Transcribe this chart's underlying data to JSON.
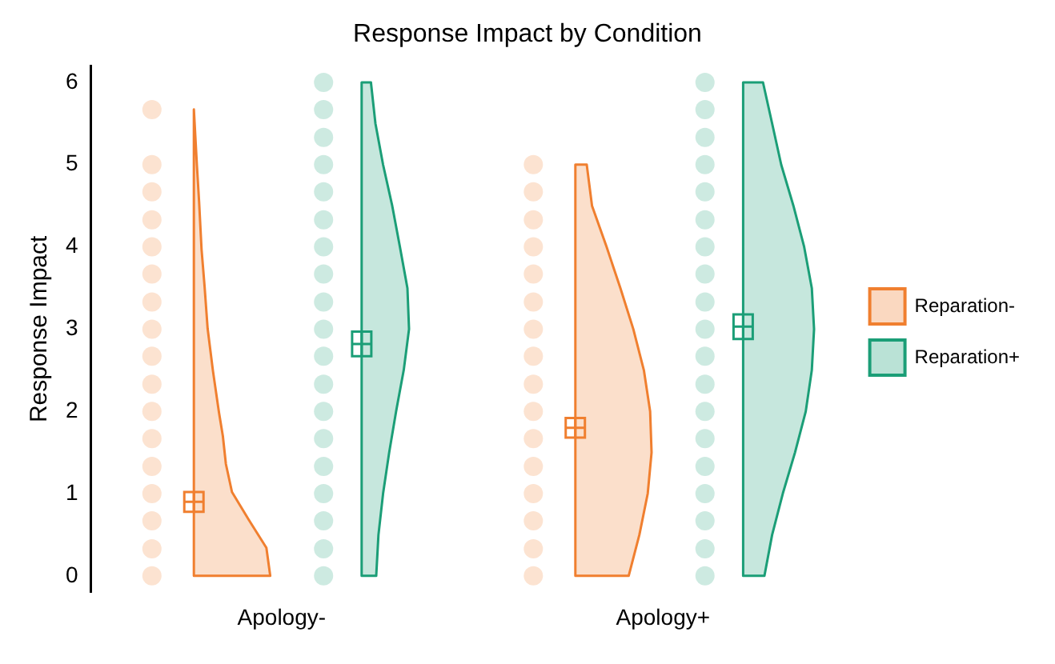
{
  "chart_data": {
    "type": "scatter",
    "title": "Response Impact by Condition",
    "ylabel": "Response Impact",
    "categories": [
      "Apology-",
      "Apology+"
    ],
    "ylim": [
      -0.2,
      6.2
    ],
    "yticks": [
      0,
      1,
      2,
      3,
      4,
      5,
      6
    ],
    "grid": false,
    "legend": "right",
    "series": [
      {
        "type": "scatter",
        "color": "#f07f2f",
        "x": [
          "Apology-",
          "Apology-",
          "Apology-",
          "Apology-",
          "Apology-",
          "Apology-",
          "Apology-",
          "Apology-",
          "Apology-",
          "Apology-",
          "Apology-",
          "Apology-",
          "Apology-",
          "Apology-",
          "Apology-",
          "Apology-",
          "Apology-",
          "Apology+",
          "Apology+",
          "Apology+",
          "Apology+",
          "Apology+",
          "Apology+",
          "Apology+",
          "Apology+",
          "Apology+",
          "Apology+",
          "Apology+",
          "Apology+",
          "Apology+",
          "Apology+",
          "Apology+",
          "Apology+"
        ],
        "values": [
          0,
          0.33,
          0.67,
          1,
          1.33,
          1.67,
          2,
          2.33,
          2.67,
          3,
          3.33,
          3.67,
          4,
          4.33,
          4.67,
          5,
          5.67,
          0,
          0.33,
          0.67,
          1,
          1.33,
          1.67,
          2,
          2.33,
          2.67,
          3,
          3.33,
          3.67,
          4,
          4.33,
          4.67,
          5
        ]
      },
      {
        "type": "scatter",
        "color": "#1b9e77",
        "x": [
          "Apology-",
          "Apology-",
          "Apology-",
          "Apology-",
          "Apology-",
          "Apology-",
          "Apology-",
          "Apology-",
          "Apology-",
          "Apology-",
          "Apology-",
          "Apology-",
          "Apology-",
          "Apology-",
          "Apology-",
          "Apology-",
          "Apology-",
          "Apology-",
          "Apology-",
          "Apology+",
          "Apology+",
          "Apology+",
          "Apology+",
          "Apology+",
          "Apology+",
          "Apology+",
          "Apology+",
          "Apology+",
          "Apology+",
          "Apology+",
          "Apology+",
          "Apology+",
          "Apology+",
          "Apology+",
          "Apology+",
          "Apology+",
          "Apology+",
          "Apology+"
        ],
        "values": [
          0,
          0.33,
          0.67,
          1,
          1.33,
          1.67,
          2,
          2.33,
          2.67,
          3,
          3.33,
          3.67,
          4,
          4.33,
          4.67,
          5,
          5.33,
          5.67,
          6,
          0,
          0.33,
          0.67,
          1,
          1.33,
          1.67,
          2,
          2.33,
          2.67,
          3,
          3.33,
          3.67,
          4,
          4.33,
          4.67,
          5,
          5.33,
          5.67,
          6
        ]
      },
      {
        "type": "scatter",
        "name": "Reparation-",
        "color": "#f07f2f",
        "marker": "square",
        "x": [
          "Apology-",
          "Apology+"
        ],
        "values": [
          0.9,
          1.8
        ],
        "errors": [
          0.12,
          0.12
        ]
      },
      {
        "type": "scatter",
        "name": "Reparation+",
        "color": "#1b9e77",
        "marker": "square",
        "x": [
          "Apology-",
          "Apology+"
        ],
        "values": [
          2.82,
          3.03
        ],
        "errors": [
          0.15,
          0.15
        ]
      }
    ]
  }
}
